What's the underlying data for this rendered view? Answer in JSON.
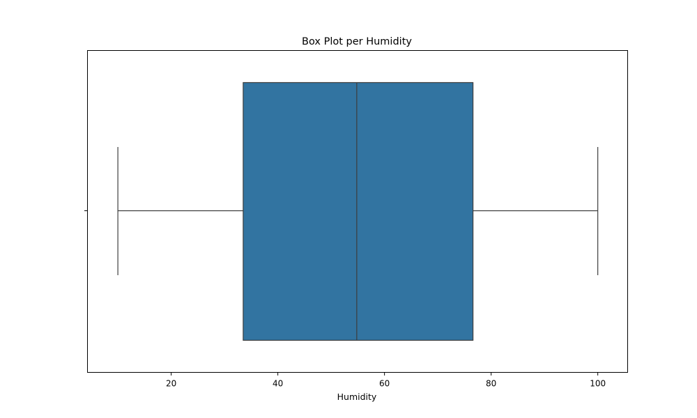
{
  "chart_data": {
    "type": "box",
    "title": "Box Plot per Humidity",
    "xlabel": "Humidity",
    "ylabel": "",
    "xlim": [
      4.3,
      105.6
    ],
    "xticks": [
      20,
      40,
      60,
      80,
      100
    ],
    "grid": false,
    "series": [
      {
        "whisker_low": 10,
        "q1": 33.5,
        "median": 54.8,
        "q3": 76.6,
        "whisker_high": 100,
        "color": "#3274a1",
        "edge_color": "#3d3d3d"
      }
    ]
  }
}
